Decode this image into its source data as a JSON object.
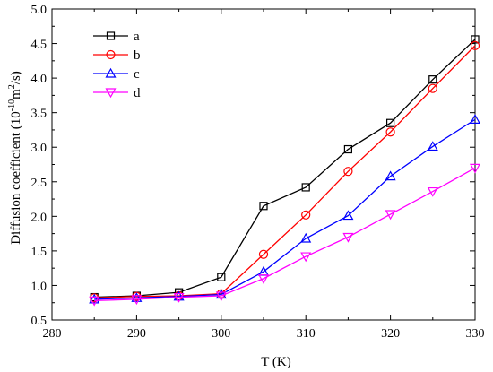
{
  "chart_data": {
    "type": "line",
    "xlabel": "T (K)",
    "ylabel_parts": {
      "prefix": "Diffusion coefficient (10",
      "exp1": "-10",
      "mid": "m",
      "exp2": "2",
      "suffix": "/s)"
    },
    "xlim": [
      280,
      330
    ],
    "ylim": [
      0.5,
      5.0
    ],
    "xticks": [
      280,
      290,
      300,
      310,
      320,
      330
    ],
    "yticks": [
      "0.5",
      "1.0",
      "1.5",
      "2.0",
      "2.5",
      "3.0",
      "3.5",
      "4.0",
      "4.5",
      "5.0"
    ],
    "grid": false,
    "legend_position": "top-left",
    "x": [
      285,
      290,
      295,
      300,
      305,
      310,
      315,
      320,
      325,
      330
    ],
    "series": [
      {
        "name": "a",
        "color": "#000000",
        "marker": "square",
        "values": [
          0.83,
          0.85,
          0.9,
          1.12,
          2.15,
          2.42,
          2.97,
          3.35,
          3.98,
          4.56
        ]
      },
      {
        "name": "b",
        "color": "#ff0000",
        "marker": "circle",
        "values": [
          0.82,
          0.84,
          0.85,
          0.88,
          1.45,
          2.02,
          2.65,
          3.22,
          3.85,
          4.47
        ]
      },
      {
        "name": "c",
        "color": "#0000ff",
        "marker": "triangle-up",
        "values": [
          0.8,
          0.82,
          0.84,
          0.87,
          1.2,
          1.68,
          2.01,
          2.58,
          3.01,
          3.4
        ]
      },
      {
        "name": "d",
        "color": "#ff00ff",
        "marker": "triangle-down",
        "values": [
          0.78,
          0.8,
          0.83,
          0.85,
          1.1,
          1.42,
          1.7,
          2.03,
          2.36,
          2.7
        ]
      }
    ]
  }
}
